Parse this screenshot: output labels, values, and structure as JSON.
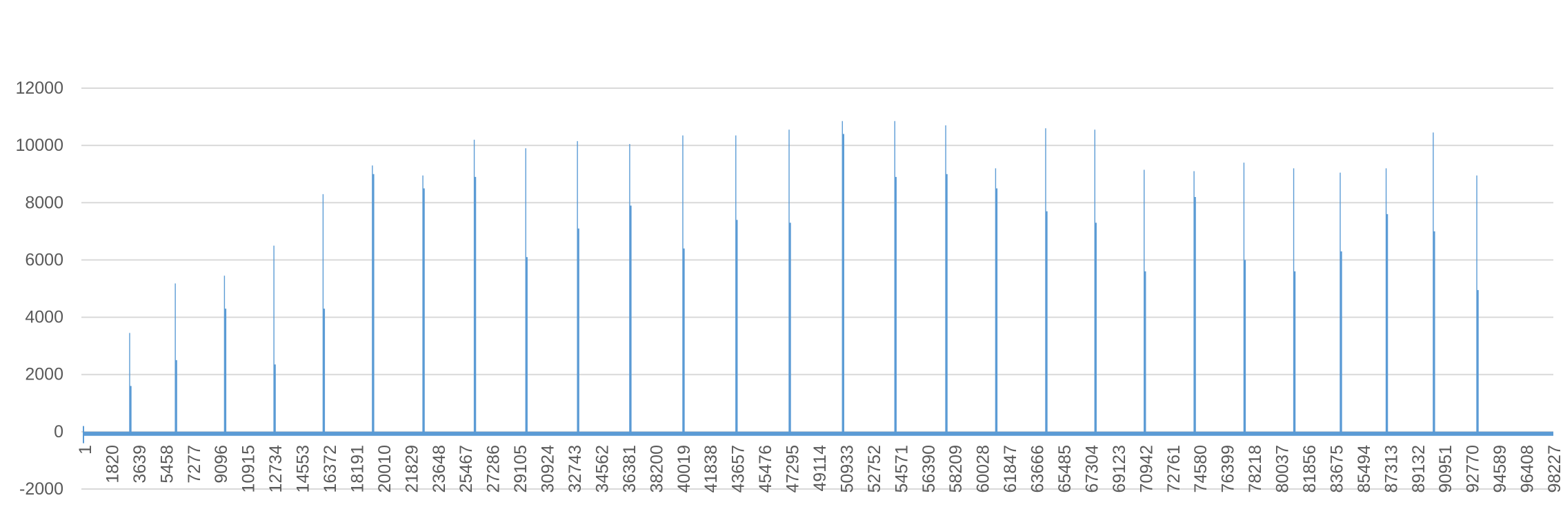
{
  "chart_data": {
    "type": "line",
    "title": "",
    "xlabel": "",
    "ylabel": "",
    "ylim": [
      -2000,
      12000
    ],
    "yticks": [
      -2000,
      0,
      2000,
      4000,
      6000,
      8000,
      10000,
      12000
    ],
    "xrange": [
      1,
      100000
    ],
    "xtick_labels": [
      "1",
      "1820",
      "3639",
      "5458",
      "7277",
      "9096",
      "10915",
      "12734",
      "14553",
      "16372",
      "18191",
      "20010",
      "21829",
      "23648",
      "25467",
      "27286",
      "29105",
      "30924",
      "32743",
      "34562",
      "36381",
      "38200",
      "40019",
      "41838",
      "43657",
      "45476",
      "47295",
      "49114",
      "50933",
      "52752",
      "54571",
      "56390",
      "58209",
      "60028",
      "61847",
      "63666",
      "65485",
      "67304",
      "69123",
      "70942",
      "72761",
      "74580",
      "76399",
      "78218",
      "80037",
      "81856",
      "83675",
      "85494",
      "87313",
      "89132",
      "90951",
      "92770",
      "94589",
      "96408",
      "98227"
    ],
    "grid": true,
    "legend": "none",
    "color": "#5b9bd5",
    "baseline": -70,
    "peaks": [
      {
        "x": 3280,
        "y": 3450,
        "mid": 1600
      },
      {
        "x": 6380,
        "y": 5180,
        "mid": 2500
      },
      {
        "x": 9720,
        "y": 5450,
        "mid": 4300
      },
      {
        "x": 13080,
        "y": 6500,
        "mid": 2350
      },
      {
        "x": 16420,
        "y": 8300,
        "mid": 4300
      },
      {
        "x": 19770,
        "y": 9300,
        "mid": 9000
      },
      {
        "x": 23200,
        "y": 8950,
        "mid": 8500
      },
      {
        "x": 26690,
        "y": 10200,
        "mid": 8900
      },
      {
        "x": 30190,
        "y": 9900,
        "mid": 6100
      },
      {
        "x": 33700,
        "y": 10150,
        "mid": 7100
      },
      {
        "x": 37250,
        "y": 10050,
        "mid": 7900
      },
      {
        "x": 40860,
        "y": 10350,
        "mid": 6400
      },
      {
        "x": 44460,
        "y": 10350,
        "mid": 7400
      },
      {
        "x": 48080,
        "y": 10550,
        "mid": 7300
      },
      {
        "x": 51700,
        "y": 10850,
        "mid": 10400
      },
      {
        "x": 55260,
        "y": 10850,
        "mid": 8900
      },
      {
        "x": 58720,
        "y": 10700,
        "mid": 9000
      },
      {
        "x": 62110,
        "y": 9200,
        "mid": 8500
      },
      {
        "x": 65510,
        "y": 10600,
        "mid": 7700
      },
      {
        "x": 68850,
        "y": 10550,
        "mid": 7300
      },
      {
        "x": 72200,
        "y": 9150,
        "mid": 5600
      },
      {
        "x": 75590,
        "y": 9100,
        "mid": 8200
      },
      {
        "x": 78980,
        "y": 9400,
        "mid": 6000
      },
      {
        "x": 82360,
        "y": 9200,
        "mid": 5600
      },
      {
        "x": 85520,
        "y": 9050,
        "mid": 6300
      },
      {
        "x": 88640,
        "y": 9200,
        "mid": 7600
      },
      {
        "x": 91840,
        "y": 10450,
        "mid": 7000
      },
      {
        "x": 94800,
        "y": 8950,
        "mid": 4950
      }
    ]
  }
}
